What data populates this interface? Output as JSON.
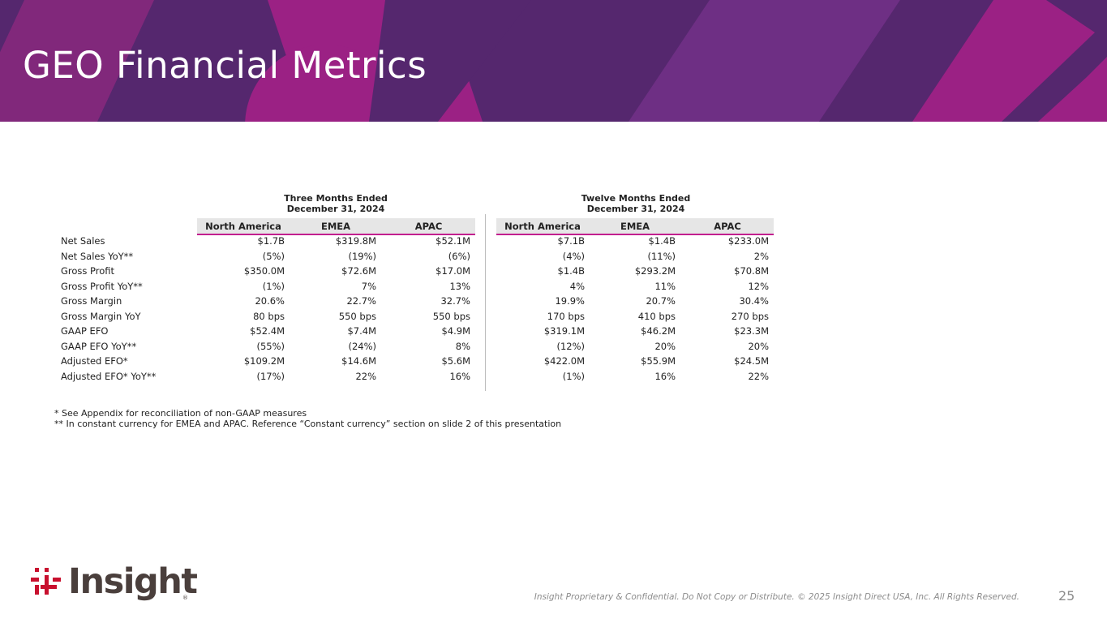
{
  "title": "GEO Financial Metrics",
  "colors": {
    "banner": "#55276e",
    "accent_magenta": "#9b2184",
    "accent_pink": "#c21f8e",
    "header_bg": "#e6e6e6",
    "logo_red": "#c8102e",
    "logo_text": "#4a3f3c"
  },
  "periods": {
    "three_months": {
      "line1": "Three Months Ended",
      "line2": "December 31, 2024"
    },
    "twelve_months": {
      "line1": "Twelve Months Ended",
      "line2": "December 31, 2024"
    }
  },
  "columns": [
    "North America",
    "EMEA",
    "APAC",
    "North America",
    "EMEA",
    "APAC"
  ],
  "rows": [
    {
      "label": "Net Sales",
      "values": [
        "$1.7B",
        "$319.8M",
        "$52.1M",
        "$7.1B",
        "$1.4B",
        "$233.0M"
      ]
    },
    {
      "label": "Net Sales YoY**",
      "values": [
        "(5%)",
        "(19%)",
        "(6%)",
        "(4%)",
        "(11%)",
        "2%"
      ]
    },
    {
      "label": "Gross Profit",
      "values": [
        "$350.0M",
        "$72.6M",
        "$17.0M",
        "$1.4B",
        "$293.2M",
        "$70.8M"
      ]
    },
    {
      "label": "Gross Profit YoY**",
      "values": [
        "(1%)",
        "7%",
        "13%",
        "4%",
        "11%",
        "12%"
      ]
    },
    {
      "label": "Gross Margin",
      "values": [
        "20.6%",
        "22.7%",
        "32.7%",
        "19.9%",
        "20.7%",
        "30.4%"
      ]
    },
    {
      "label": "Gross Margin YoY",
      "values": [
        "80 bps",
        "550 bps",
        "550 bps",
        "170 bps",
        "410 bps",
        "270 bps"
      ]
    },
    {
      "label": "GAAP EFO",
      "values": [
        "$52.4M",
        "$7.4M",
        "$4.9M",
        "$319.1M",
        "$46.2M",
        "$23.3M"
      ]
    },
    {
      "label": "GAAP EFO YoY**",
      "values": [
        "(55%)",
        "(24%)",
        "8%",
        "(12%)",
        "20%",
        "20%"
      ]
    },
    {
      "label": "Adjusted EFO*",
      "values": [
        "$109.2M",
        "$14.6M",
        "$5.6M",
        "$422.0M",
        "$55.9M",
        "$24.5M"
      ]
    },
    {
      "label": "Adjusted EFO* YoY**",
      "values": [
        "(17%)",
        "22%",
        "16%",
        "(1%)",
        "16%",
        "22%"
      ]
    }
  ],
  "footnotes": [
    "* See Appendix for reconciliation of non-GAAP measures",
    "** In constant currency for EMEA and APAC. Reference “Constant currency” section on slide 2 of this presentation"
  ],
  "logo": {
    "name": "Insight",
    "registered": "®",
    "icon": "insight-logo-icon"
  },
  "confidential": "Insight Proprietary & Confidential. Do Not Copy or Distribute. © 2025 Insight Direct USA, Inc. All Rights Reserved.",
  "page_number": "25"
}
